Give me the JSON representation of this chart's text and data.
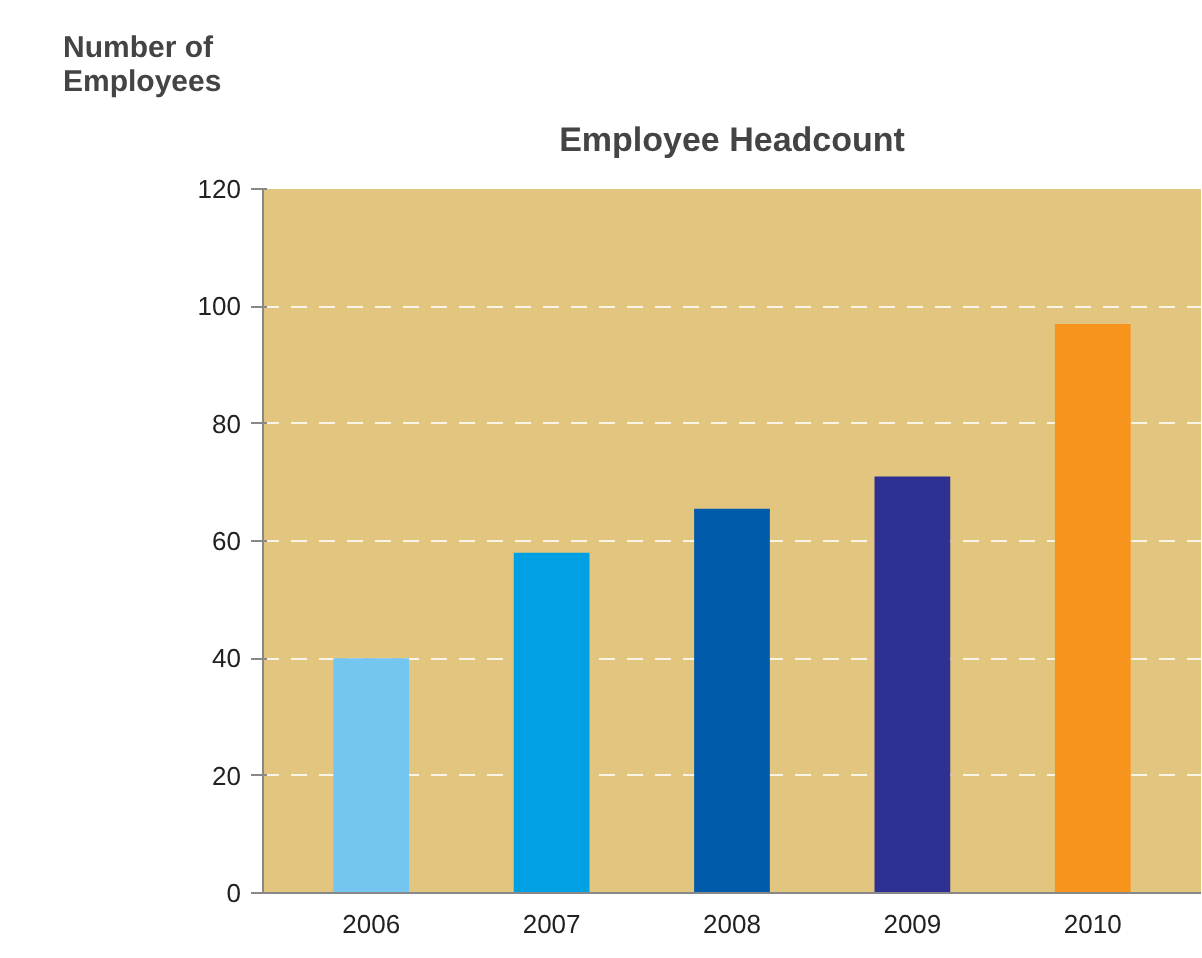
{
  "chart_data": {
    "type": "bar",
    "title": "Employee Headcount",
    "ylabel": "Number of\nEmployees",
    "categories": [
      "2006",
      "2007",
      "2008",
      "2009",
      "2010"
    ],
    "values": [
      40,
      58,
      65.5,
      71,
      97
    ],
    "colors": [
      "#74c5ef",
      "#00a0e2",
      "#005baa",
      "#2e3192",
      "#f7941e"
    ],
    "ylim": [
      0,
      120
    ],
    "yticks": [
      0,
      20,
      40,
      60,
      80,
      100,
      120
    ],
    "grid": "y"
  }
}
